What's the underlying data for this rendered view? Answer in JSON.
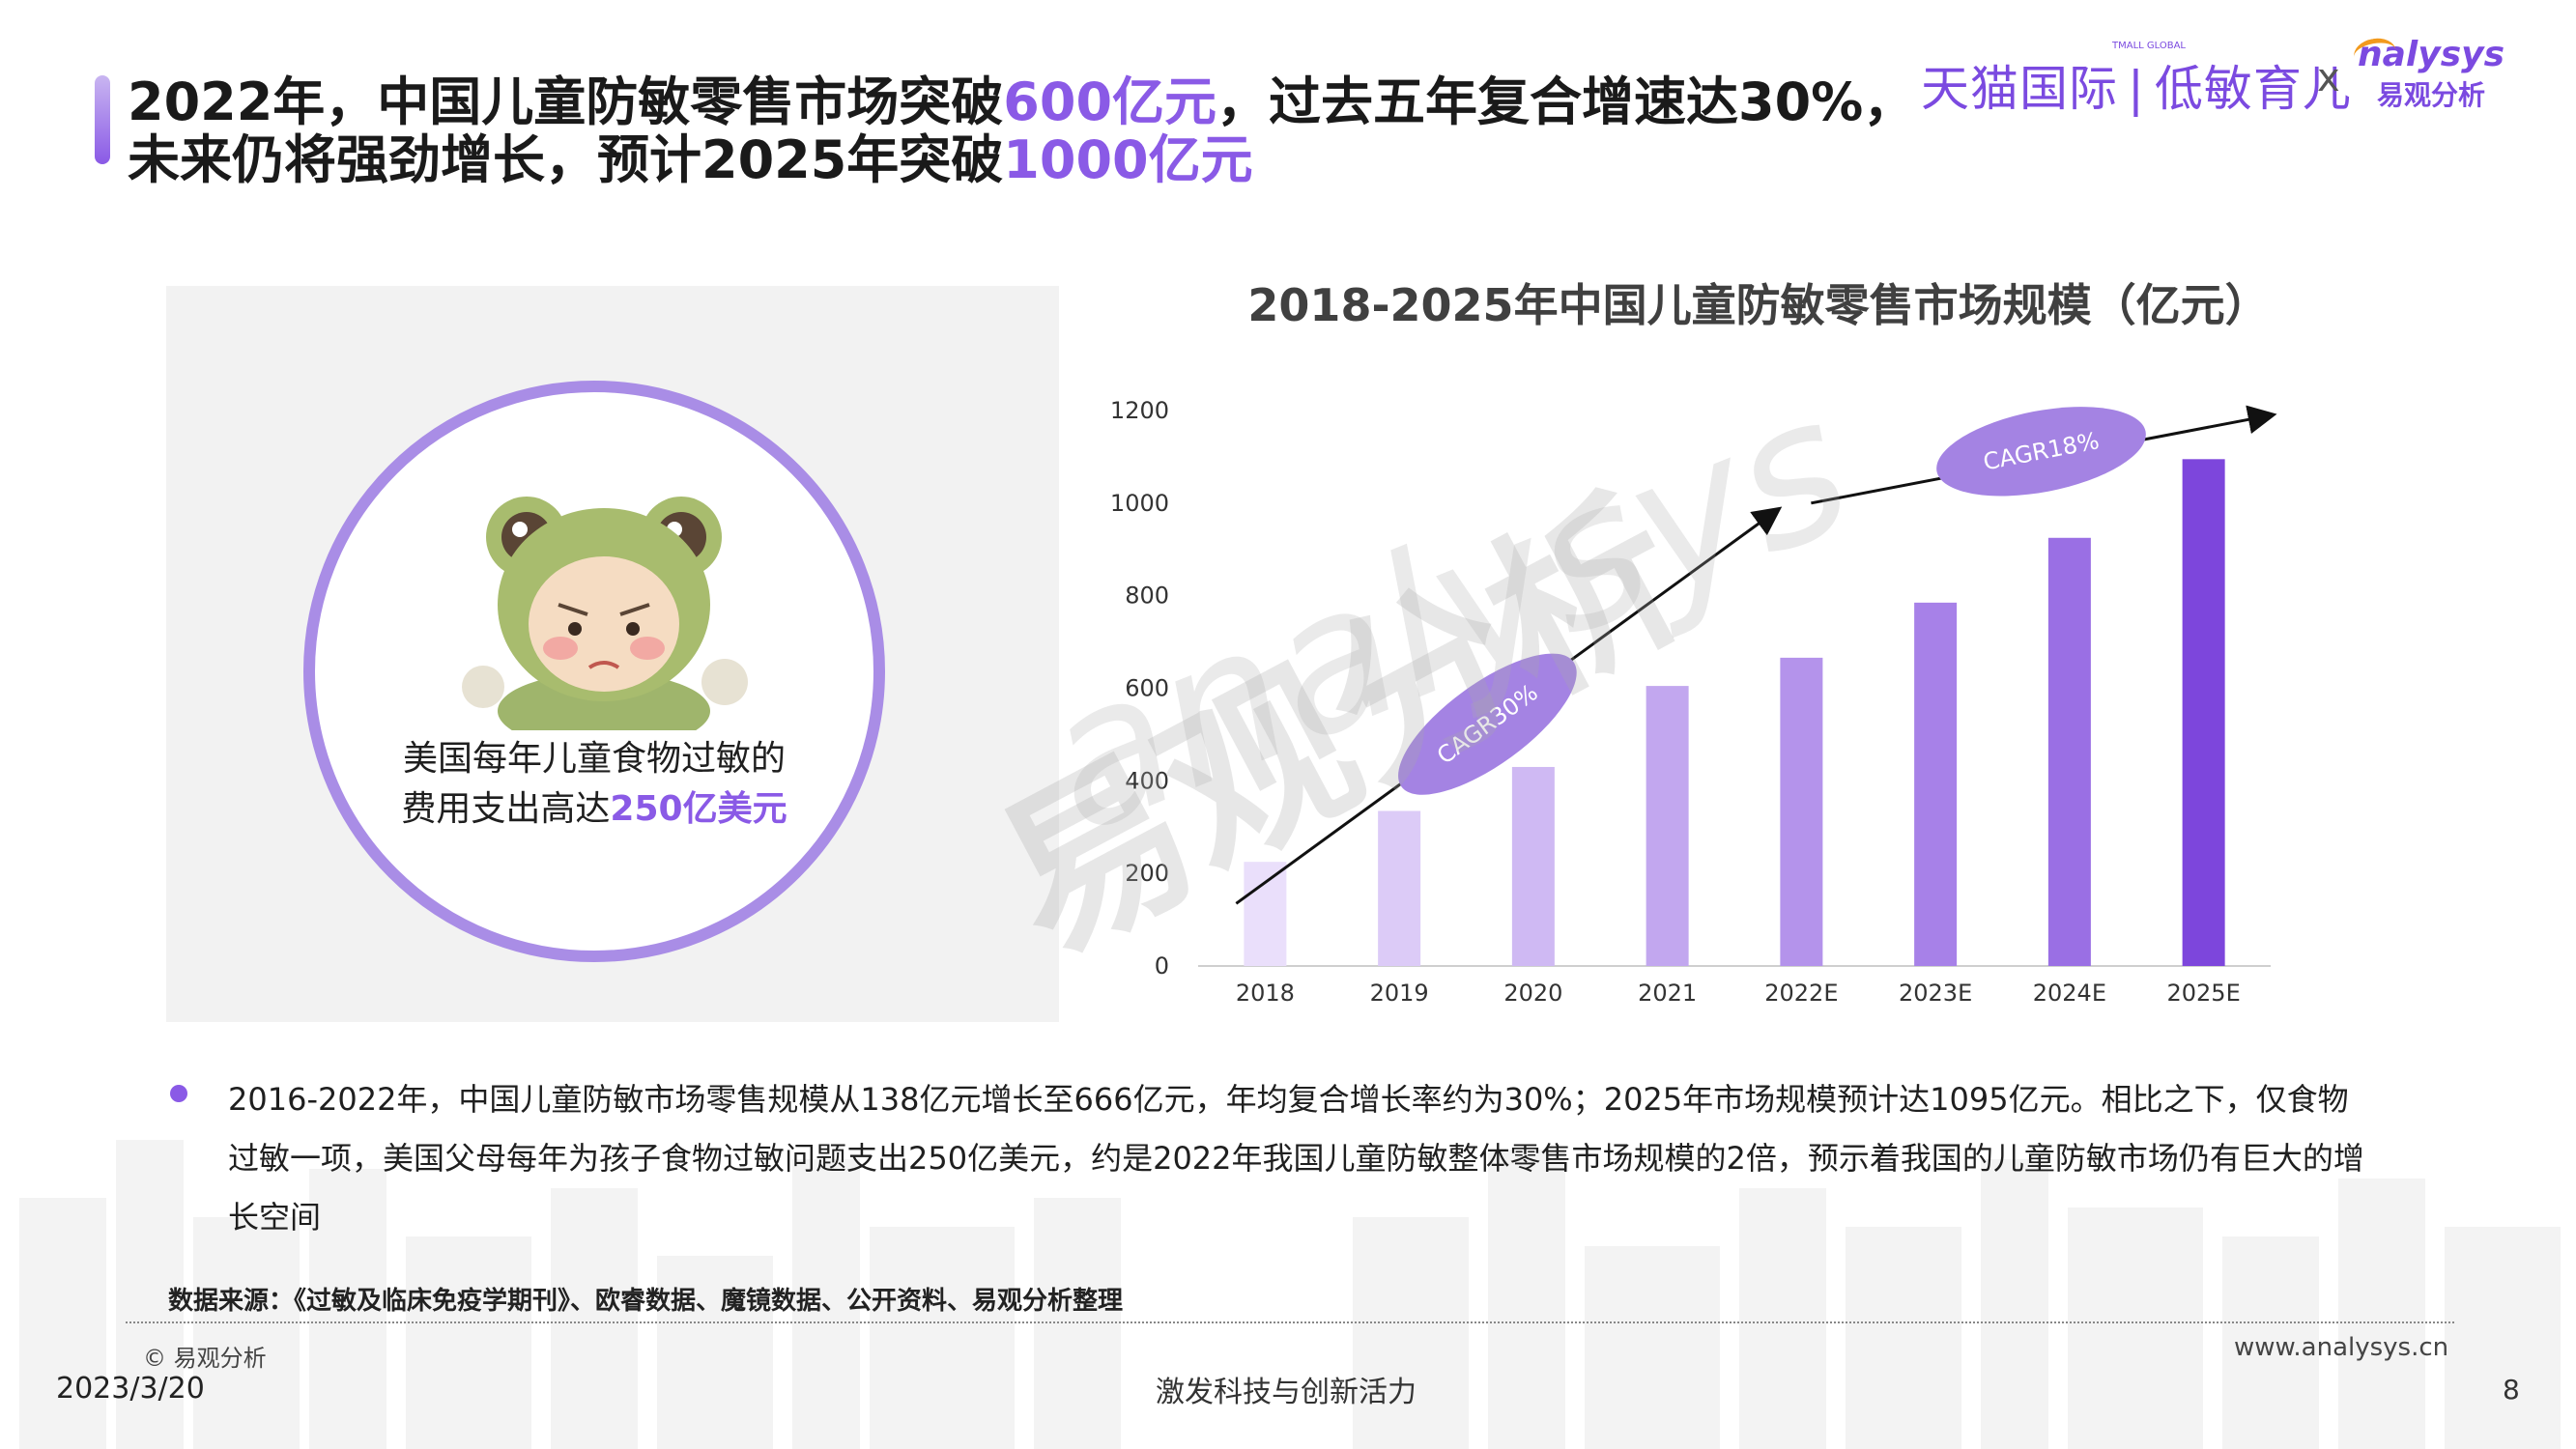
{
  "header": {
    "title_line1_a": "2022年，中国儿童防敏零售市场突破",
    "title_line1_hl": "600亿元",
    "title_line1_b": "，过去五年复合增速达30%，",
    "title_line2_a": "未来仍将强劲增长，预计2025年突破",
    "title_line2_hl": "1000亿元"
  },
  "brand": {
    "tmall_small": "TMALL GLOBAL",
    "tmall": "天猫国际",
    "divider": "|",
    "sub": "低敏育儿",
    "x": "x",
    "analysys_en": "nalysys",
    "analysys_zh": "易观分析",
    "accent_color": "#7b4ae0",
    "logo_orange": "#f29a1d"
  },
  "callout": {
    "line1": "美国每年儿童食物过敏的",
    "line2_a": "费用支出高达",
    "line2_hl": "250亿美元",
    "image": "frog-costume-child-illustration"
  },
  "watermark": {
    "en": "analysys",
    "zh": "易观分析"
  },
  "chart_data": {
    "type": "bar",
    "title": "2018-2025年中国儿童防敏零售市场规模（亿元）",
    "categories": [
      "2018",
      "2019",
      "2020",
      "2021",
      "2022E",
      "2023E",
      "2024E",
      "2025E"
    ],
    "values": [
      225,
      335,
      430,
      605,
      666,
      785,
      925,
      1095
    ],
    "ylim": [
      0,
      1200
    ],
    "yticks": [
      0,
      200,
      400,
      600,
      800,
      1000,
      1200
    ],
    "grid": false,
    "bar_colors": [
      "#eadffb",
      "#dccbf7",
      "#cfb9f3",
      "#c2a7ef",
      "#b493eb",
      "#a781e8",
      "#9a6fe4",
      "#7d46dc"
    ],
    "annotations": [
      {
        "text": "CAGR30%",
        "from_x": "2018",
        "to_x": "2022E"
      },
      {
        "text": "CAGR18%",
        "from_x": "2022E",
        "to_x": "2025E"
      }
    ],
    "annotation_color": "#a483e3"
  },
  "body": {
    "paragraph": "2016-2022年，中国儿童防敏市场零售规模从138亿元增长至666亿元，年均复合增长率约为30%；2025年市场规模预计达1095亿元。相比之下，仅食物过敏一项，美国父母每年为孩子食物过敏问题支出250亿美元，约是2022年我国儿童防敏整体零售市场规模的2倍，预示着我国的儿童防敏市场仍有巨大的增长空间",
    "source": "数据来源：《过敏及临床免疫学期刊》、欧睿数据、魔镜数据、公开资料、易观分析整理"
  },
  "footer": {
    "copyright": "© 易观分析",
    "website": "www.analysys.cn",
    "date": "2023/3/20",
    "slogan": "激发科技与创新活力",
    "page": "8"
  }
}
